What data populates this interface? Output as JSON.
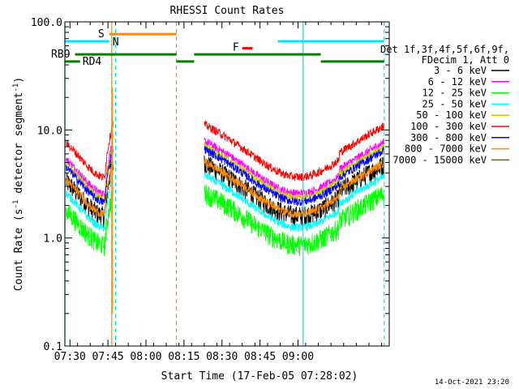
{
  "chart_data": {
    "type": "line",
    "title": "RHESSI Count Rates",
    "xlabel": "Start Time (17-Feb-05 07:28:02)",
    "ylabel": "Count Rate (s",
    "ylabel_sup": "-1",
    "ylabel_mid": " detector segment",
    "ylabel_sup2": "-1",
    "ylabel_end": ")",
    "yscale": "log",
    "ylim": [
      0.1,
      100.0
    ],
    "xlim_minutes": [
      0,
      128
    ],
    "x_ticks": [
      {
        "label": "07:30",
        "minute": 2
      },
      {
        "label": "07:45",
        "minute": 17
      },
      {
        "label": "08:00",
        "minute": 32
      },
      {
        "label": "08:15",
        "minute": 47
      },
      {
        "label": "08:30",
        "minute": 62
      },
      {
        "label": "08:45",
        "minute": 77
      },
      {
        "label": "09:00",
        "minute": 92
      }
    ],
    "y_ticks": [
      {
        "label": "0.1",
        "value": 0.1
      },
      {
        "label": "1.0",
        "value": 1.0
      },
      {
        "label": "10.0",
        "value": 10.0
      },
      {
        "label": "100.0",
        "value": 100.0
      }
    ],
    "legend_header": [
      "Det 1f,3f,4f,5f,6f,9f,",
      "FDecim 1, Att 0"
    ],
    "series": [
      {
        "name": "3 - 6 keV",
        "color": "#000000",
        "level": 0.97
      },
      {
        "name": "6 - 12 keV",
        "color": "#ff00ff",
        "level": 1.55
      },
      {
        "name": "12 - 25 keV",
        "color": "#00ff00",
        "level": 0.52
      },
      {
        "name": "25 - 50 keV",
        "color": "#00ffff",
        "level": 0.75
      },
      {
        "name": "50 - 100 keV",
        "color": "#c8c800",
        "level": 1.4
      },
      {
        "name": "100 - 300 keV",
        "color": "#ff0000",
        "level": 2.2
      },
      {
        "name": "300 - 800 keV",
        "color": "#0000ff",
        "level": 1.3
      },
      {
        "name": "800 - 7000 keV",
        "color": "#ff8c00",
        "level": 1.0
      },
      {
        "name": "7000 - 15000 keV",
        "color": "#806000",
        "level": null
      }
    ],
    "flags": [
      {
        "label": "S",
        "color": "#ff8c00",
        "value": 77,
        "start": 17.5,
        "end": 44,
        "dashed_at": [
          17.5,
          44
        ]
      },
      {
        "label": "N",
        "color": "#00e5ff",
        "value": 66,
        "start": 0,
        "end": 17.5
      },
      {
        "label": "",
        "color": "#00e5ff",
        "value": 66,
        "start": 84,
        "end": 126
      },
      {
        "label": "RBO",
        "color": "#008000",
        "value": 50,
        "start": 4,
        "end": 44
      },
      {
        "label": "",
        "color": "#008000",
        "value": 50,
        "start": 51,
        "end": 101
      },
      {
        "label": "RD4",
        "color": "#008000",
        "value": 43,
        "start": 0,
        "end": 6
      },
      {
        "label": "",
        "color": "#008000",
        "value": 43,
        "start": 44,
        "end": 51
      },
      {
        "label": "",
        "color": "#008000",
        "value": 43,
        "start": 101,
        "end": 126
      },
      {
        "label": "F",
        "color": "#ff0000",
        "value": 57,
        "start": 70,
        "end": 74
      }
    ],
    "gap_markers": [
      {
        "color": "#00e5ff",
        "minute": 0,
        "style": "solid"
      },
      {
        "color": "#00e5ff",
        "minute": 20,
        "style": "dashed"
      },
      {
        "color": "#ff8c00",
        "minute": 18.5,
        "style": "solid"
      },
      {
        "color": "#ff8c00",
        "minute": 44,
        "style": "dashed"
      },
      {
        "color": "#00e5ff",
        "minute": 94,
        "style": "solid"
      },
      {
        "color": "#00e5ff",
        "minute": 126,
        "style": "dashed"
      }
    ]
  },
  "footer_date": "14-Oct-2021 23:20"
}
